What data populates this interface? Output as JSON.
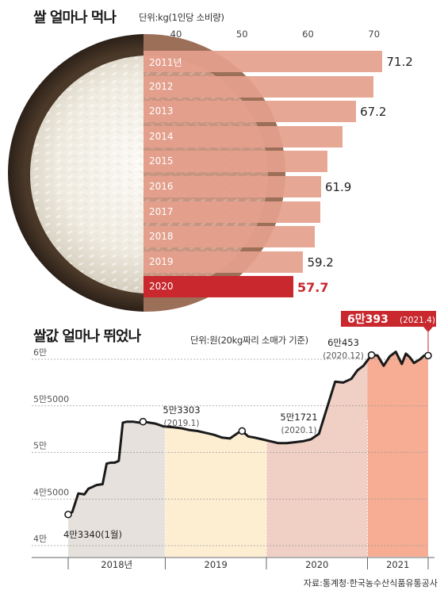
{
  "chart_data": [
    {
      "type": "bar",
      "title": "쌀 얼마나 먹나",
      "unit": "단위:kg(1인당 소비량)",
      "x_ticks": [
        "40",
        "50",
        "60",
        "70"
      ],
      "xlim": [
        35,
        75
      ],
      "categories": [
        "2011년",
        "2012",
        "2013",
        "2014",
        "2015",
        "2016",
        "2017",
        "2018",
        "2019",
        "2020"
      ],
      "values": [
        71.2,
        69.8,
        67.2,
        65.1,
        62.9,
        61.9,
        61.8,
        61.0,
        59.2,
        57.7
      ],
      "labels": [
        "71.2",
        "",
        "67.2",
        "",
        "",
        "61.9",
        "",
        "",
        "59.2",
        "57.7"
      ],
      "bar_color": "#e59f8c",
      "highlight_color": "#c8282e"
    },
    {
      "type": "line",
      "title": "쌀값 얼마나 뛰었나",
      "unit": "단위:원(20kg짜리 소매가 기준)",
      "y_ticks": [
        "6만",
        "5만5000",
        "5만",
        "4만5000",
        "4만"
      ],
      "ylim": [
        40000,
        62000
      ],
      "x_periods": [
        "2018년",
        "2019",
        "2020",
        "2021"
      ],
      "period_colors": [
        "#e6e1dc",
        "#fdeed2",
        "#f0cfc4",
        "#f6ad93"
      ],
      "series": [
        {
          "x": [
            0,
            2,
            5,
            8,
            10,
            12,
            14,
            17,
            19,
            21,
            23,
            25,
            27,
            29,
            32,
            35,
            37,
            40,
            43,
            47,
            52,
            56,
            60,
            64,
            68,
            72,
            76,
            80,
            84,
            86,
            89,
            92,
            96,
            100,
            104,
            108,
            112,
            116,
            120,
            124,
            128,
            132,
            136,
            140,
            143,
            146,
            150,
            153,
            156,
            159,
            162,
            165,
            167,
            169,
            171,
            174,
            176,
            178
          ],
          "y": [
            43340,
            43600,
            45600,
            45500,
            46100,
            46300,
            46500,
            46600,
            48800,
            48900,
            48900,
            49100,
            53200,
            53300,
            53300,
            53200,
            53303,
            53200,
            53100,
            52800,
            52700,
            52600,
            52400,
            52300,
            52100,
            51900,
            51600,
            51500,
            52100,
            52300,
            51721,
            51600,
            51400,
            51200,
            51000,
            51000,
            51100,
            51200,
            51400,
            52000,
            54800,
            57600,
            57500,
            57900,
            58800,
            59300,
            60453,
            60400,
            59300,
            60300,
            60800,
            59500,
            60600,
            60200,
            59600,
            60000,
            60393,
            60393
          ]
        }
      ],
      "annotations": [
        {
          "label": "4만3340(1월)",
          "sub": ""
        },
        {
          "label": "5만3303",
          "sub": "(2019.1)"
        },
        {
          "label": "5만1721",
          "sub": "(2020.1)"
        },
        {
          "label": "6만453",
          "sub": "(2020.12)"
        },
        {
          "label": "6만393",
          "sub": "(2021.4)"
        }
      ],
      "source": "자료:통계청·한국농수산식품유통공사"
    }
  ]
}
